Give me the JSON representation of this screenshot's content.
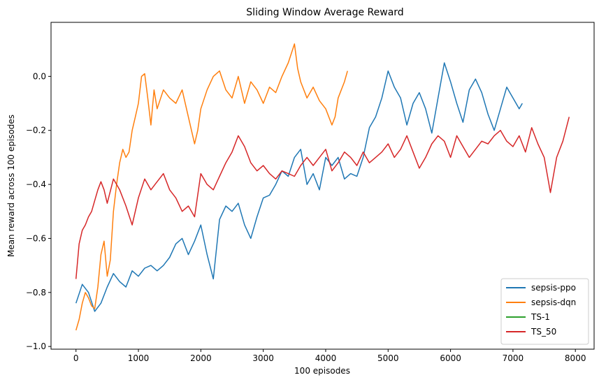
{
  "chart_data": {
    "type": "line",
    "title": "Sliding Window Average Reward",
    "xlabel": "100 episodes",
    "ylabel": "Mean reward across 100 episodes",
    "xlim": [
      -400,
      8300
    ],
    "ylim": [
      -1.01,
      0.2
    ],
    "xticks": [
      0,
      1000,
      2000,
      3000,
      4000,
      5000,
      6000,
      7000,
      8000
    ],
    "xtick_labels": [
      "0",
      "1000",
      "2000",
      "3000",
      "4000",
      "5000",
      "6000",
      "7000",
      "8000"
    ],
    "yticks": [
      -1.0,
      -0.8,
      -0.6,
      -0.4,
      -0.2,
      0.0
    ],
    "ytick_labels": [
      "−1.0",
      "−0.8",
      "−0.6",
      "−0.4",
      "−0.2",
      "0.0"
    ],
    "grid": false,
    "legend_position": "bottom-right",
    "series": [
      {
        "name": "sepsis-ppo",
        "color": "#1f77b4",
        "x": [
          0,
          100,
          200,
          300,
          400,
          500,
          600,
          700,
          800,
          900,
          1000,
          1100,
          1200,
          1300,
          1400,
          1500,
          1600,
          1700,
          1800,
          1900,
          2000,
          2100,
          2200,
          2300,
          2400,
          2500,
          2600,
          2700,
          2800,
          2900,
          3000,
          3100,
          3200,
          3300,
          3400,
          3500,
          3600,
          3700,
          3800,
          3900,
          4000,
          4100,
          4200,
          4300,
          4400,
          4500,
          4600,
          4700,
          4800,
          4900,
          5000,
          5100,
          5200,
          5300,
          5400,
          5500,
          5600,
          5700,
          5800,
          5900,
          6000,
          6100,
          6200,
          6300,
          6400,
          6500,
          6600,
          6700,
          6800,
          6900,
          7000,
          7100,
          7150
        ],
        "y": [
          -0.84,
          -0.77,
          -0.8,
          -0.87,
          -0.84,
          -0.78,
          -0.73,
          -0.76,
          -0.78,
          -0.72,
          -0.74,
          -0.71,
          -0.7,
          -0.72,
          -0.7,
          -0.67,
          -0.62,
          -0.6,
          -0.66,
          -0.61,
          -0.55,
          -0.66,
          -0.75,
          -0.53,
          -0.48,
          -0.5,
          -0.47,
          -0.55,
          -0.6,
          -0.52,
          -0.45,
          -0.44,
          -0.4,
          -0.35,
          -0.37,
          -0.3,
          -0.27,
          -0.4,
          -0.36,
          -0.42,
          -0.3,
          -0.33,
          -0.3,
          -0.38,
          -0.36,
          -0.37,
          -0.3,
          -0.19,
          -0.15,
          -0.08,
          0.02,
          -0.04,
          -0.08,
          -0.18,
          -0.1,
          -0.06,
          -0.12,
          -0.21,
          -0.08,
          0.05,
          -0.02,
          -0.1,
          -0.17,
          -0.05,
          -0.01,
          -0.06,
          -0.14,
          -0.2,
          -0.12,
          -0.04,
          -0.08,
          -0.12,
          -0.1
        ]
      },
      {
        "name": "sepsis-dqn",
        "color": "#ff7f0e",
        "x": [
          0,
          50,
          100,
          150,
          200,
          250,
          300,
          350,
          400,
          450,
          500,
          550,
          600,
          650,
          700,
          750,
          800,
          850,
          900,
          950,
          1000,
          1050,
          1100,
          1150,
          1200,
          1250,
          1300,
          1400,
          1500,
          1600,
          1700,
          1800,
          1900,
          1950,
          2000,
          2100,
          2200,
          2300,
          2400,
          2500,
          2600,
          2700,
          2800,
          2900,
          3000,
          3100,
          3200,
          3300,
          3400,
          3500,
          3550,
          3600,
          3700,
          3800,
          3900,
          4000,
          4100,
          4150,
          4200,
          4250,
          4300,
          4350
        ],
        "y": [
          -0.94,
          -0.9,
          -0.84,
          -0.8,
          -0.82,
          -0.85,
          -0.86,
          -0.78,
          -0.66,
          -0.61,
          -0.74,
          -0.68,
          -0.5,
          -0.4,
          -0.32,
          -0.27,
          -0.3,
          -0.28,
          -0.2,
          -0.15,
          -0.1,
          0.0,
          0.01,
          -0.08,
          -0.18,
          -0.05,
          -0.12,
          -0.05,
          -0.08,
          -0.1,
          -0.05,
          -0.15,
          -0.25,
          -0.2,
          -0.12,
          -0.05,
          0.0,
          0.02,
          -0.05,
          -0.08,
          0.0,
          -0.1,
          -0.02,
          -0.05,
          -0.1,
          -0.04,
          -0.06,
          0.0,
          0.05,
          0.12,
          0.03,
          -0.02,
          -0.08,
          -0.04,
          -0.09,
          -0.12,
          -0.18,
          -0.15,
          -0.08,
          -0.05,
          -0.02,
          0.02
        ]
      },
      {
        "name": "TS-1",
        "color": "#2ca02c",
        "x": [],
        "y": []
      },
      {
        "name": "TS_50",
        "color": "#d62728",
        "x": [
          0,
          50,
          100,
          150,
          200,
          250,
          300,
          350,
          400,
          450,
          500,
          600,
          700,
          800,
          900,
          1000,
          1100,
          1200,
          1300,
          1400,
          1500,
          1600,
          1700,
          1800,
          1900,
          2000,
          2100,
          2200,
          2300,
          2400,
          2500,
          2600,
          2700,
          2800,
          2900,
          3000,
          3100,
          3200,
          3300,
          3400,
          3500,
          3600,
          3700,
          3800,
          3900,
          4000,
          4100,
          4200,
          4300,
          4400,
          4500,
          4600,
          4700,
          4800,
          4900,
          5000,
          5100,
          5200,
          5300,
          5400,
          5500,
          5600,
          5700,
          5800,
          5900,
          6000,
          6100,
          6200,
          6300,
          6400,
          6500,
          6600,
          6700,
          6800,
          6900,
          7000,
          7100,
          7200,
          7300,
          7400,
          7500,
          7600,
          7700,
          7800,
          7900
        ],
        "y": [
          -0.75,
          -0.62,
          -0.57,
          -0.55,
          -0.52,
          -0.5,
          -0.46,
          -0.42,
          -0.39,
          -0.42,
          -0.47,
          -0.38,
          -0.42,
          -0.48,
          -0.55,
          -0.45,
          -0.38,
          -0.42,
          -0.39,
          -0.36,
          -0.42,
          -0.45,
          -0.5,
          -0.48,
          -0.52,
          -0.36,
          -0.4,
          -0.42,
          -0.37,
          -0.32,
          -0.28,
          -0.22,
          -0.26,
          -0.32,
          -0.35,
          -0.33,
          -0.36,
          -0.38,
          -0.35,
          -0.36,
          -0.37,
          -0.33,
          -0.3,
          -0.33,
          -0.3,
          -0.27,
          -0.35,
          -0.32,
          -0.28,
          -0.3,
          -0.33,
          -0.28,
          -0.32,
          -0.3,
          -0.28,
          -0.25,
          -0.3,
          -0.27,
          -0.22,
          -0.28,
          -0.34,
          -0.3,
          -0.25,
          -0.22,
          -0.24,
          -0.3,
          -0.22,
          -0.26,
          -0.3,
          -0.27,
          -0.24,
          -0.25,
          -0.22,
          -0.2,
          -0.24,
          -0.26,
          -0.22,
          -0.28,
          -0.19,
          -0.25,
          -0.3,
          -0.43,
          -0.3,
          -0.24,
          -0.15
        ]
      }
    ]
  }
}
